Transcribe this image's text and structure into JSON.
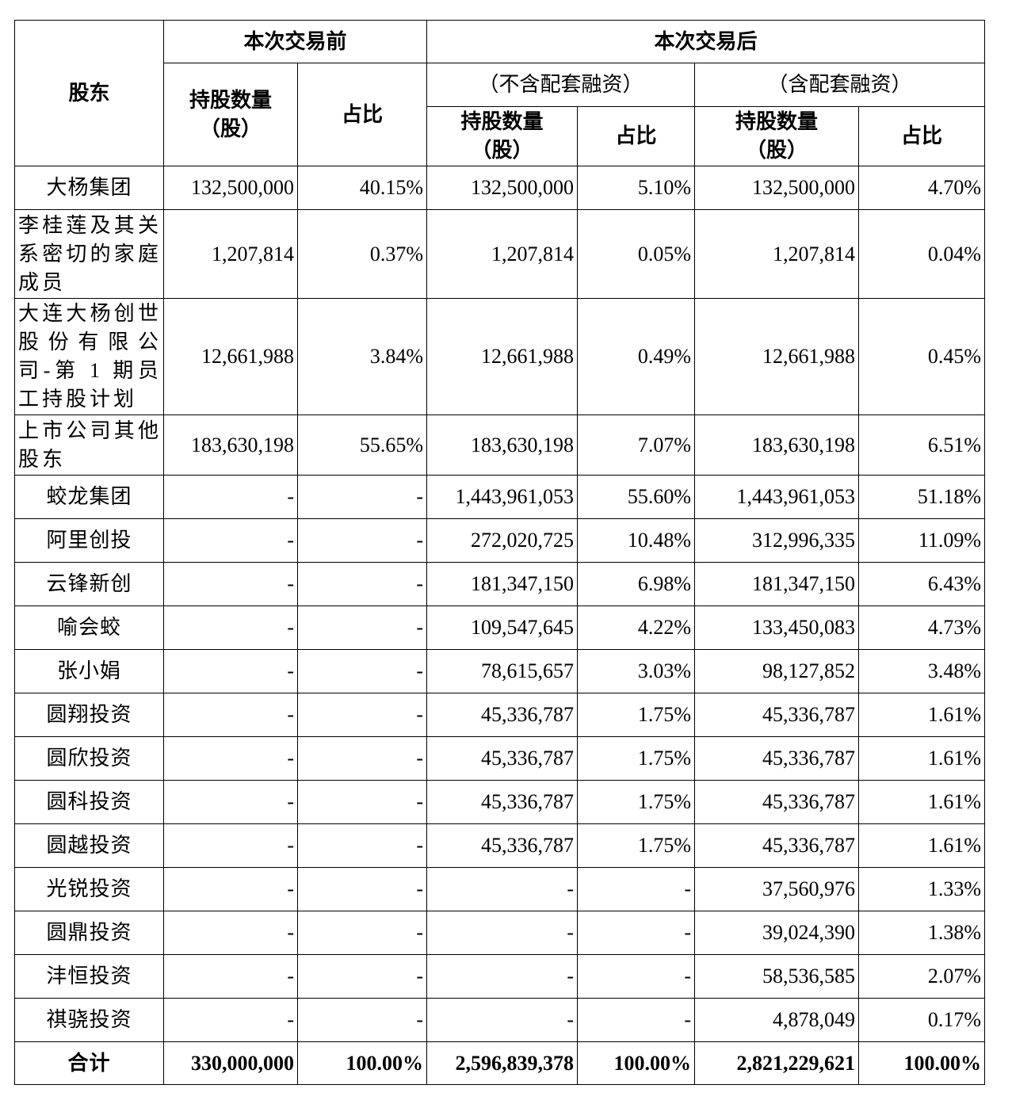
{
  "table": {
    "header": {
      "corner": "股东",
      "groups": [
        "本次交易前",
        "本次交易后"
      ],
      "subgroups": [
        "（不含配套融资）",
        "（含配套融资）"
      ],
      "shares_label": "持股数量",
      "shares_unit": "（股）",
      "ratio_label": "占比"
    },
    "rows": [
      {
        "name": "大杨集团",
        "cells": [
          "132,500,000",
          "40.15%",
          "132,500,000",
          "5.10%",
          "132,500,000",
          "4.70%"
        ]
      },
      {
        "name": "李桂莲及其关系密切的家庭成员",
        "cells": [
          "1,207,814",
          "0.37%",
          "1,207,814",
          "0.05%",
          "1,207,814",
          "0.04%"
        ]
      },
      {
        "name": "大连大杨创世股份有限公司-第 1 期员工持股计划",
        "cells": [
          "12,661,988",
          "3.84%",
          "12,661,988",
          "0.49%",
          "12,661,988",
          "0.45%"
        ]
      },
      {
        "name": "上市公司其他股东",
        "cells": [
          "183,630,198",
          "55.65%",
          "183,630,198",
          "7.07%",
          "183,630,198",
          "6.51%"
        ]
      },
      {
        "name": "蛟龙集团",
        "cells": [
          "-",
          "-",
          "1,443,961,053",
          "55.60%",
          "1,443,961,053",
          "51.18%"
        ]
      },
      {
        "name": "阿里创投",
        "cells": [
          "-",
          "-",
          "272,020,725",
          "10.48%",
          "312,996,335",
          "11.09%"
        ]
      },
      {
        "name": "云锋新创",
        "cells": [
          "-",
          "-",
          "181,347,150",
          "6.98%",
          "181,347,150",
          "6.43%"
        ]
      },
      {
        "name": "喻会蛟",
        "cells": [
          "-",
          "-",
          "109,547,645",
          "4.22%",
          "133,450,083",
          "4.73%"
        ]
      },
      {
        "name": "张小娟",
        "cells": [
          "-",
          "-",
          "78,615,657",
          "3.03%",
          "98,127,852",
          "3.48%"
        ]
      },
      {
        "name": "圆翔投资",
        "cells": [
          "-",
          "-",
          "45,336,787",
          "1.75%",
          "45,336,787",
          "1.61%"
        ]
      },
      {
        "name": "圆欣投资",
        "cells": [
          "-",
          "-",
          "45,336,787",
          "1.75%",
          "45,336,787",
          "1.61%"
        ]
      },
      {
        "name": "圆科投资",
        "cells": [
          "-",
          "-",
          "45,336,787",
          "1.75%",
          "45,336,787",
          "1.61%"
        ]
      },
      {
        "name": "圆越投资",
        "cells": [
          "-",
          "-",
          "45,336,787",
          "1.75%",
          "45,336,787",
          "1.61%"
        ]
      },
      {
        "name": "光锐投资",
        "cells": [
          "-",
          "-",
          "-",
          "-",
          "37,560,976",
          "1.33%"
        ]
      },
      {
        "name": "圆鼎投资",
        "cells": [
          "-",
          "-",
          "-",
          "-",
          "39,024,390",
          "1.38%"
        ]
      },
      {
        "name": "沣恒投资",
        "cells": [
          "-",
          "-",
          "-",
          "-",
          "58,536,585",
          "2.07%"
        ]
      },
      {
        "name": "祺骁投资",
        "cells": [
          "-",
          "-",
          "-",
          "-",
          "4,878,049",
          "0.17%"
        ]
      }
    ],
    "total": {
      "name": "合计",
      "cells": [
        "330,000,000",
        "100.00%",
        "2,596,839,378",
        "100.00%",
        "2,821,229,621",
        "100.00%"
      ]
    }
  }
}
